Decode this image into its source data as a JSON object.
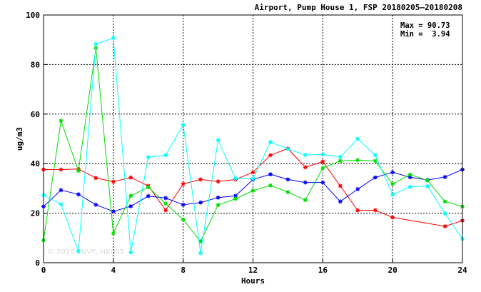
{
  "chart_data": {
    "type": "line",
    "title": "Airport, Pump House 1, FSP 20180205—20180208",
    "xlabel": "Hours",
    "ylabel": "ug/m3",
    "xlim": [
      0,
      24
    ],
    "ylim": [
      0,
      100
    ],
    "xticks": [
      0,
      4,
      8,
      12,
      16,
      20,
      24
    ],
    "yticks": [
      0,
      20,
      40,
      60,
      80,
      100
    ],
    "grid": true,
    "stats": {
      "max_label": "Max = 90.73",
      "min_label": "Min =  3.94"
    },
    "watermark": "© 2020 ENVF, HKUST",
    "series": [
      {
        "color": "#ff0000",
        "x": [
          0,
          1,
          2,
          3,
          4,
          5,
          6,
          7,
          8,
          9,
          10,
          11,
          12,
          13,
          14,
          15,
          16,
          17,
          18,
          19,
          20,
          23,
          24
        ],
        "y": [
          37.6,
          37.6,
          37.8,
          34.2,
          32.7,
          34.4,
          31.0,
          21.2,
          31.8,
          33.6,
          32.8,
          33.6,
          36.5,
          43.4,
          46.1,
          38.5,
          40.8,
          31.0,
          21.1,
          21.2,
          18.3,
          14.7,
          17.0
        ]
      },
      {
        "color": "#0000ff",
        "x": [
          0,
          1,
          2,
          3,
          4,
          5,
          6,
          7,
          8,
          9,
          10,
          11,
          12,
          13,
          14,
          15,
          16,
          17,
          18,
          19,
          20,
          21,
          22,
          23,
          24
        ],
        "y": [
          22.7,
          29.3,
          27.6,
          23.4,
          20.7,
          22.8,
          26.9,
          26.1,
          23.4,
          24.3,
          26.3,
          27.0,
          33.6,
          35.7,
          33.6,
          32.4,
          32.4,
          24.7,
          29.7,
          34.4,
          36.5,
          34.5,
          33.4,
          34.6,
          37.6
        ]
      },
      {
        "color": "#00dd00",
        "x": [
          0,
          1,
          2,
          3,
          4,
          5,
          6,
          7,
          8,
          9,
          10,
          11,
          12,
          13,
          14,
          15,
          16,
          17,
          18,
          19,
          20,
          21,
          22,
          23,
          24
        ],
        "y": [
          9.1,
          57.3,
          37.1,
          86.7,
          11.9,
          27.0,
          30.5,
          23.9,
          17.4,
          8.6,
          23.3,
          25.8,
          29.1,
          31.2,
          28.5,
          25.3,
          38.2,
          41.1,
          41.4,
          41.1,
          31.8,
          35.6,
          33.2,
          24.7,
          22.7
        ]
      },
      {
        "color": "#00ffff",
        "x": [
          0,
          1,
          2,
          3,
          4,
          5,
          6,
          7,
          8,
          9,
          10,
          11,
          12,
          13,
          14,
          15,
          16,
          17,
          18,
          19,
          20,
          21,
          22,
          23,
          24
        ],
        "y": [
          27.3,
          23.6,
          4.6,
          88.3,
          90.7,
          4.2,
          42.6,
          43.4,
          55.7,
          3.9,
          49.5,
          34.0,
          33.9,
          48.7,
          45.9,
          43.5,
          43.7,
          42.7,
          50.0,
          43.5,
          27.5,
          30.6,
          30.9,
          19.9,
          9.6
        ]
      }
    ]
  }
}
